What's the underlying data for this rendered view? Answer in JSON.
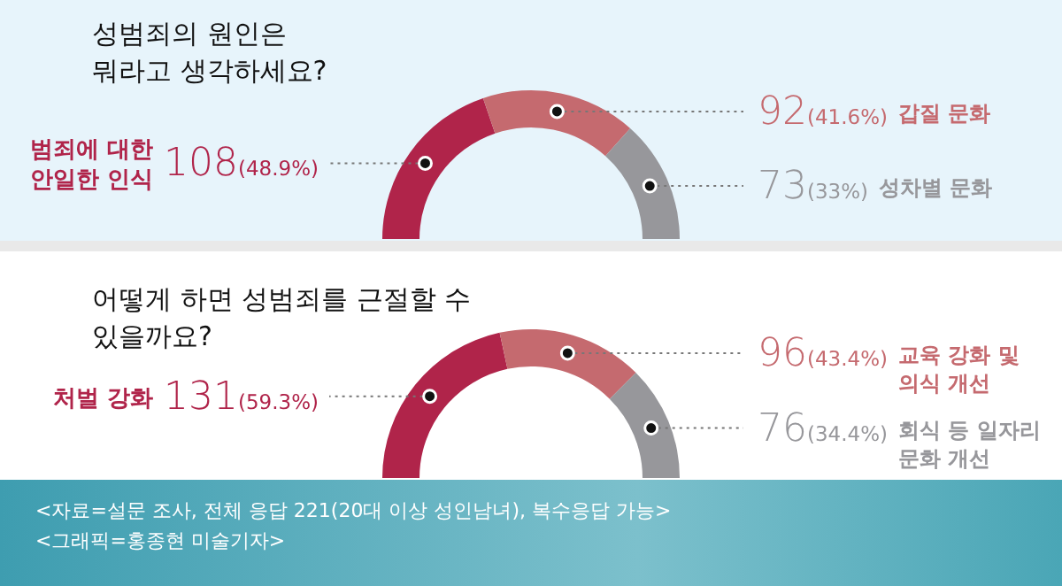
{
  "chart_data": [
    {
      "type": "donut",
      "title": "성범죄의 원인은 뭐라고 생각하세요?",
      "categories": [
        "범죄에 대한 안일한 인식",
        "갑질 문화",
        "성차별 문화"
      ],
      "values": [
        108,
        92,
        73
      ],
      "value_labels": [
        "108(48.9%)",
        "92(41.6%)",
        "73(33%)"
      ],
      "colors": [
        "#b0244a",
        "#c56a6f",
        "#97979b"
      ]
    },
    {
      "type": "donut",
      "title": "어떻게 하면 성범죄를 근절할 수 있을까요?",
      "categories": [
        "처벌 강화",
        "교육 강화 및 의식 개선",
        "회식 등 일자리 문화 개선"
      ],
      "values": [
        131,
        96,
        76
      ],
      "value_labels": [
        "131(59.3%)",
        "96(43.4%)",
        "76(34.4%)"
      ],
      "colors": [
        "#b0244a",
        "#c56a6f",
        "#97979b"
      ],
      "annotations": [
        "<자료=설문 조사, 전체 응답 221(20대 이상 성인남녀), 복수응답 가능>",
        "<그래픽=홍종현 미술기자>"
      ]
    }
  ]
}
